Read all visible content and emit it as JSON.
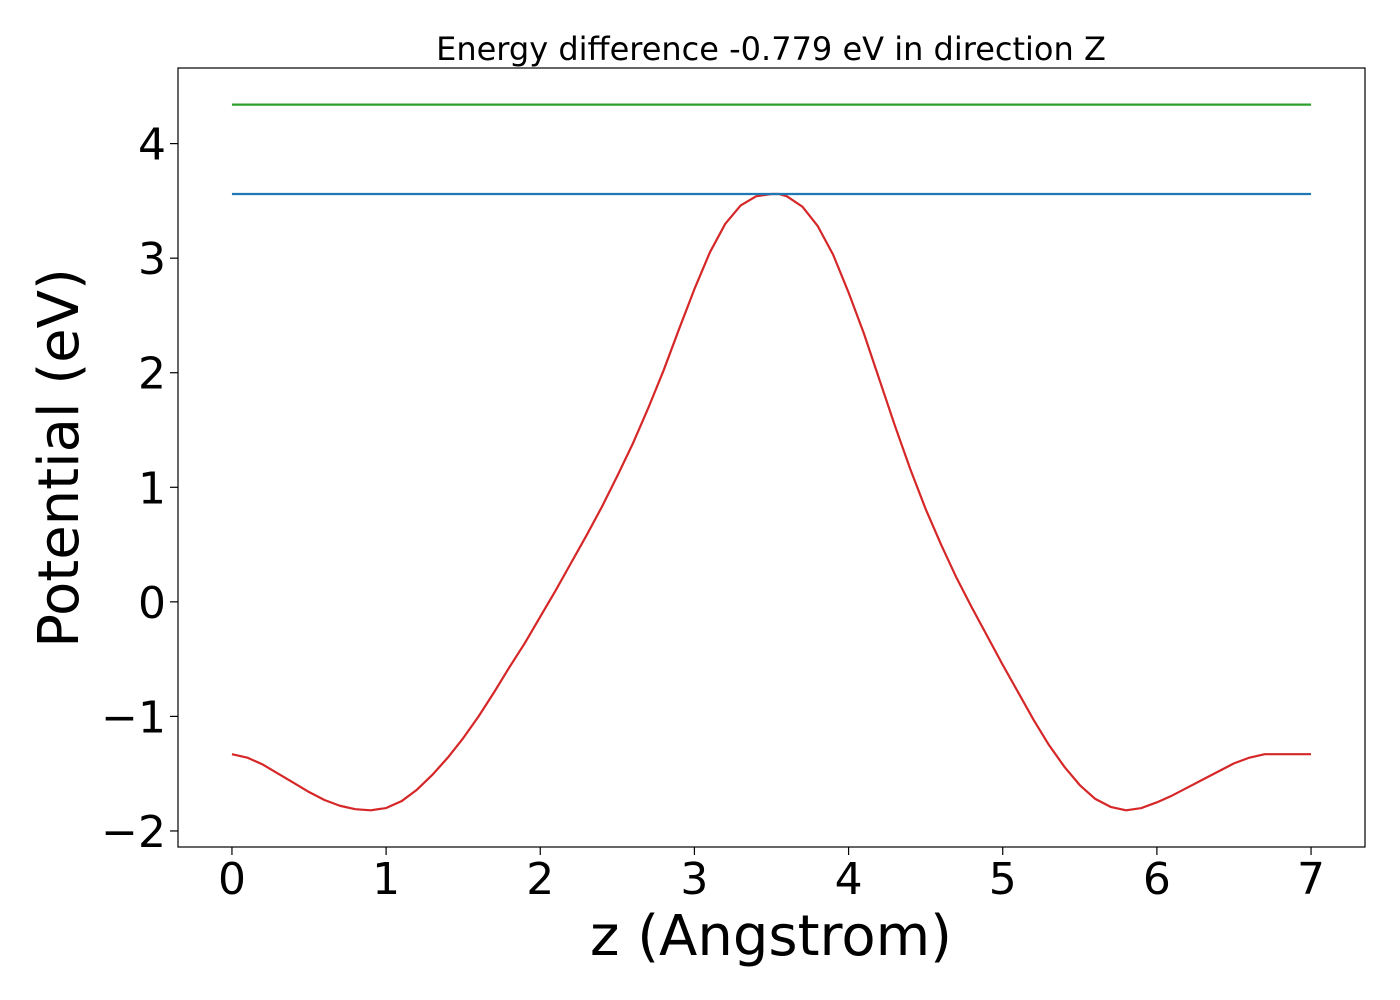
{
  "chart_data": {
    "type": "line",
    "title": "Energy difference -0.779 eV in direction Z",
    "xlabel": "z (Angstrom)",
    "ylabel": "Potential (eV)",
    "xlim": [
      -0.35,
      7.35
    ],
    "ylim": [
      -2.14,
      4.66
    ],
    "xticks": [
      0,
      1,
      2,
      3,
      4,
      5,
      6,
      7
    ],
    "yticks": [
      -2,
      -1,
      0,
      1,
      2,
      3,
      4
    ],
    "ytick_labels": [
      "−2",
      "−1",
      "0",
      "1",
      "2",
      "3",
      "4"
    ],
    "grid": false,
    "series": [
      {
        "color": "#d62728",
        "x": [
          0,
          0.1,
          0.2,
          0.3,
          0.4,
          0.5,
          0.6,
          0.7,
          0.8,
          0.9,
          1.0,
          1.1,
          1.2,
          1.3,
          1.4,
          1.5,
          1.6,
          1.7,
          1.8,
          1.9,
          2.0,
          2.1,
          2.2,
          2.3,
          2.4,
          2.5,
          2.6,
          2.7,
          2.8,
          2.9,
          3.0,
          3.1,
          3.2,
          3.3,
          3.4,
          3.5,
          3.55,
          3.6,
          3.7,
          3.8,
          3.9,
          4.0,
          4.1,
          4.2,
          4.3,
          4.4,
          4.5,
          4.6,
          4.7,
          4.8,
          4.9,
          5.0,
          5.1,
          5.2,
          5.3,
          5.4,
          5.5,
          5.6,
          5.7,
          5.8,
          5.9,
          6.0,
          6.1,
          6.2,
          6.3,
          6.4,
          6.5,
          6.6,
          6.7,
          6.8,
          6.9,
          7.0
        ],
        "y": [
          -1.33,
          -1.36,
          -1.42,
          -1.5,
          -1.58,
          -1.66,
          -1.73,
          -1.78,
          -1.81,
          -1.82,
          -1.8,
          -1.74,
          -1.64,
          -1.51,
          -1.36,
          -1.19,
          -1.0,
          -0.79,
          -0.57,
          -0.36,
          -0.13,
          0.1,
          0.34,
          0.58,
          0.83,
          1.1,
          1.38,
          1.69,
          2.02,
          2.38,
          2.73,
          3.05,
          3.3,
          3.46,
          3.54,
          3.56,
          3.56,
          3.54,
          3.45,
          3.28,
          3.03,
          2.7,
          2.34,
          1.94,
          1.54,
          1.16,
          0.81,
          0.5,
          0.21,
          -0.05,
          -0.3,
          -0.55,
          -0.79,
          -1.03,
          -1.25,
          -1.44,
          -1.6,
          -1.72,
          -1.79,
          -1.82,
          -1.8,
          -1.75,
          -1.69,
          -1.62,
          -1.55,
          -1.48,
          -1.41,
          -1.36,
          -1.33,
          -1.33,
          -1.33,
          -1.33
        ]
      },
      {
        "color": "#1f77b4",
        "x": [
          0,
          7
        ],
        "y": [
          3.56,
          3.56
        ]
      },
      {
        "color": "#2ca02c",
        "x": [
          0,
          7
        ],
        "y": [
          4.34,
          4.34
        ]
      }
    ]
  }
}
